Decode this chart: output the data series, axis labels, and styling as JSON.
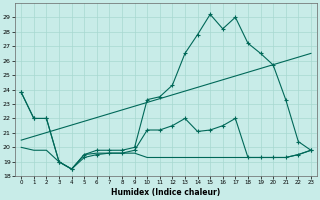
{
  "xlabel": "Humidex (Indice chaleur)",
  "background_color": "#c8ece8",
  "grid_color": "#a8d8d0",
  "line_color": "#006858",
  "xlim": [
    -0.5,
    23.5
  ],
  "ylim": [
    18,
    30
  ],
  "yticks": [
    18,
    19,
    20,
    21,
    22,
    23,
    24,
    25,
    26,
    27,
    28,
    29
  ],
  "xticks": [
    0,
    1,
    2,
    3,
    4,
    5,
    6,
    7,
    8,
    9,
    10,
    11,
    12,
    13,
    14,
    15,
    16,
    17,
    18,
    19,
    20,
    21,
    22,
    23
  ],
  "series_max": {
    "x": [
      0,
      1,
      2,
      3,
      4,
      5,
      6,
      7,
      8,
      9,
      10,
      11,
      12,
      13,
      14,
      15,
      16,
      17,
      18,
      19,
      20,
      21,
      22,
      23
    ],
    "y": [
      23.8,
      22.0,
      22.0,
      19.0,
      18.5,
      19.5,
      19.8,
      19.8,
      19.8,
      20.0,
      23.3,
      23.5,
      24.3,
      26.5,
      27.8,
      29.2,
      28.2,
      29.0,
      27.2,
      26.5,
      25.7,
      23.3,
      20.4,
      19.8
    ]
  },
  "series_min": {
    "x": [
      0,
      1,
      2,
      3,
      4,
      5,
      6,
      7,
      8,
      9,
      10,
      11,
      12,
      13,
      14,
      15,
      16,
      17,
      18,
      19,
      20,
      21,
      22,
      23
    ],
    "y": [
      23.8,
      22.0,
      22.0,
      19.0,
      18.5,
      19.3,
      19.5,
      19.6,
      19.6,
      19.8,
      21.2,
      21.2,
      21.5,
      22.0,
      21.1,
      21.2,
      21.5,
      22.0,
      19.3,
      19.3,
      19.3,
      19.3,
      19.5,
      19.8
    ]
  },
  "series_trend": {
    "x": [
      0,
      23
    ],
    "y": [
      20.5,
      26.5
    ]
  },
  "series_flat": {
    "x": [
      0,
      1,
      2,
      3,
      4,
      5,
      6,
      7,
      8,
      9,
      10,
      11,
      12,
      13,
      14,
      15,
      16,
      17,
      18,
      19,
      20,
      21,
      22,
      23
    ],
    "y": [
      20.0,
      19.8,
      19.8,
      19.0,
      18.5,
      19.5,
      19.6,
      19.6,
      19.6,
      19.6,
      19.3,
      19.3,
      19.3,
      19.3,
      19.3,
      19.3,
      19.3,
      19.3,
      19.3,
      19.3,
      19.3,
      19.3,
      19.5,
      19.8
    ]
  }
}
